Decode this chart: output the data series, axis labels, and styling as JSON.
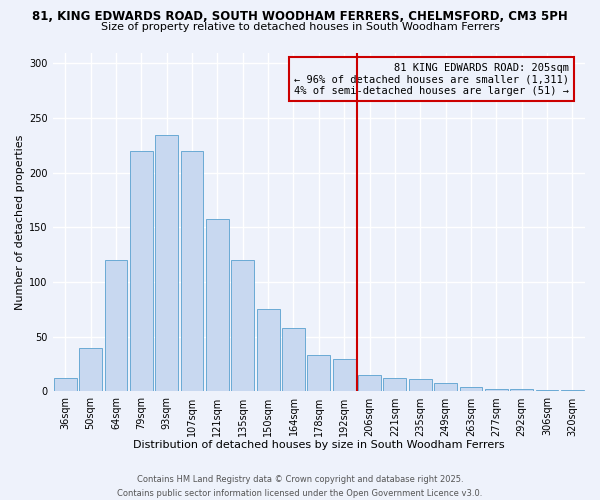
{
  "title1": "81, KING EDWARDS ROAD, SOUTH WOODHAM FERRERS, CHELMSFORD, CM3 5PH",
  "title2": "Size of property relative to detached houses in South Woodham Ferrers",
  "xlabel": "Distribution of detached houses by size in South Woodham Ferrers",
  "ylabel": "Number of detached properties",
  "bar_labels": [
    "36sqm",
    "50sqm",
    "64sqm",
    "79sqm",
    "93sqm",
    "107sqm",
    "121sqm",
    "135sqm",
    "150sqm",
    "164sqm",
    "178sqm",
    "192sqm",
    "206sqm",
    "221sqm",
    "235sqm",
    "249sqm",
    "263sqm",
    "277sqm",
    "292sqm",
    "306sqm",
    "320sqm"
  ],
  "bar_values": [
    12,
    40,
    120,
    220,
    235,
    220,
    158,
    120,
    75,
    58,
    33,
    30,
    15,
    12,
    11,
    8,
    4,
    2,
    2,
    1,
    1
  ],
  "bar_color": "#c8d8f0",
  "bar_edge_color": "#6aaad4",
  "vline_color": "#cc0000",
  "vline_x_index": 12,
  "annotation_title": "81 KING EDWARDS ROAD: 205sqm",
  "annotation_line1": "← 96% of detached houses are smaller (1,311)",
  "annotation_line2": "4% of semi-detached houses are larger (51) →",
  "annotation_box_edge": "#cc0000",
  "ylim": [
    0,
    310
  ],
  "yticks": [
    0,
    50,
    100,
    150,
    200,
    250,
    300
  ],
  "footnote1": "Contains HM Land Registry data © Crown copyright and database right 2025.",
  "footnote2": "Contains public sector information licensed under the Open Government Licence v3.0.",
  "bg_color": "#eef2fb",
  "grid_color": "#ffffff",
  "title1_fontsize": 8.5,
  "title2_fontsize": 8,
  "xlabel_fontsize": 8,
  "ylabel_fontsize": 8,
  "tick_fontsize": 7,
  "annotation_fontsize": 7.5,
  "footnote_fontsize": 6
}
